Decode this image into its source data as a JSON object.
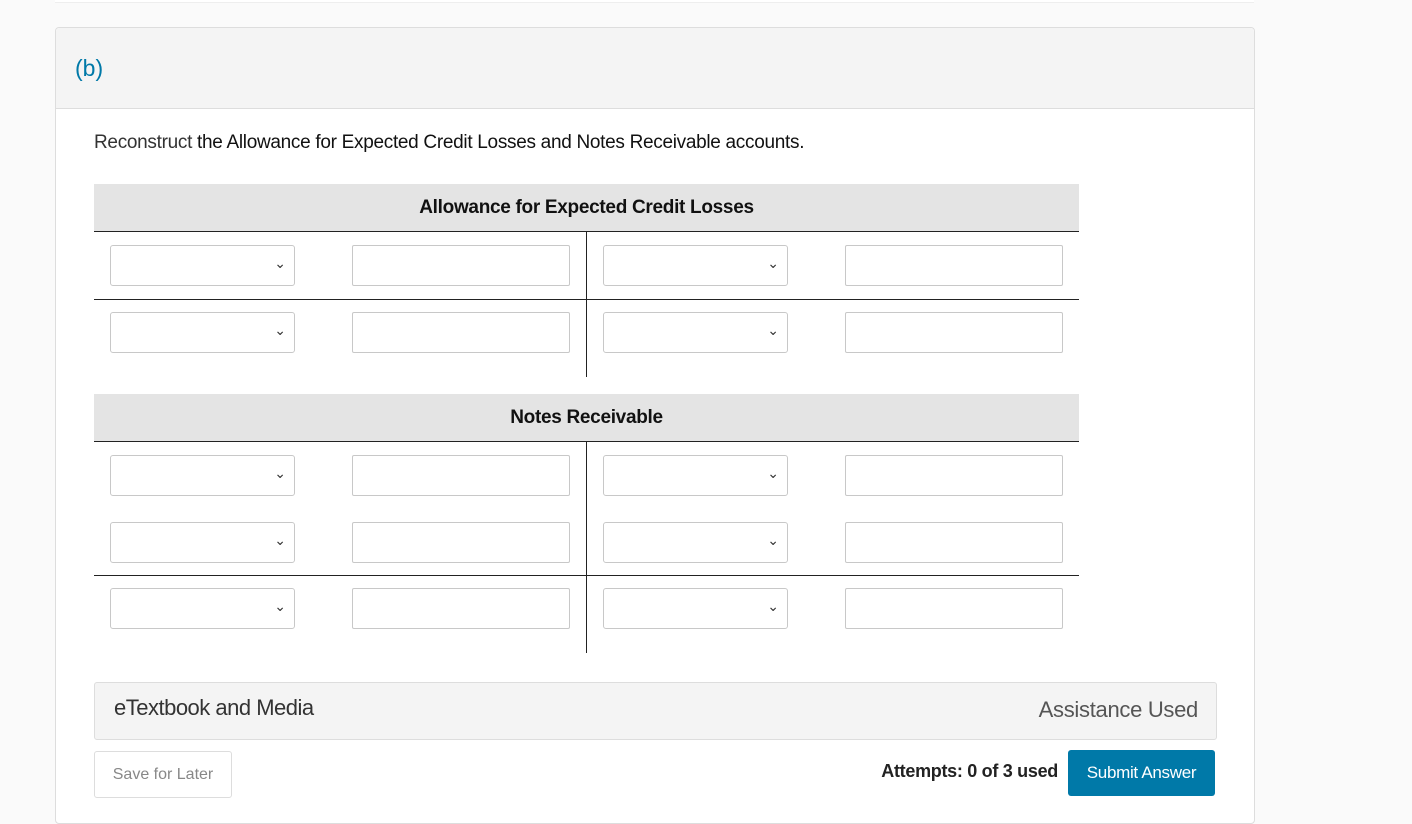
{
  "part_label": "(b)",
  "prompt": {
    "glossary_term": "Reconstruct",
    "rest": " the Allowance for Expected Credit Losses and Notes Receivable accounts."
  },
  "accounts": [
    {
      "title": "Allowance for Expected Credit Losses",
      "rows": 2,
      "divider_after_rows": [
        1
      ]
    },
    {
      "title": "Notes Receivable",
      "rows": 3,
      "divider_after_rows": [
        2
      ]
    }
  ],
  "media": {
    "label": "eTextbook and Media",
    "assistance": "Assistance Used"
  },
  "footer": {
    "save_label": "Save for Later",
    "attempts": "Attempts: 0 of 3 used",
    "submit_label": "Submit Answer"
  },
  "colors": {
    "accent": "#0079a8",
    "header_bg": "#e4e4e4"
  },
  "icons": {
    "select": "chevron-down-icon"
  }
}
